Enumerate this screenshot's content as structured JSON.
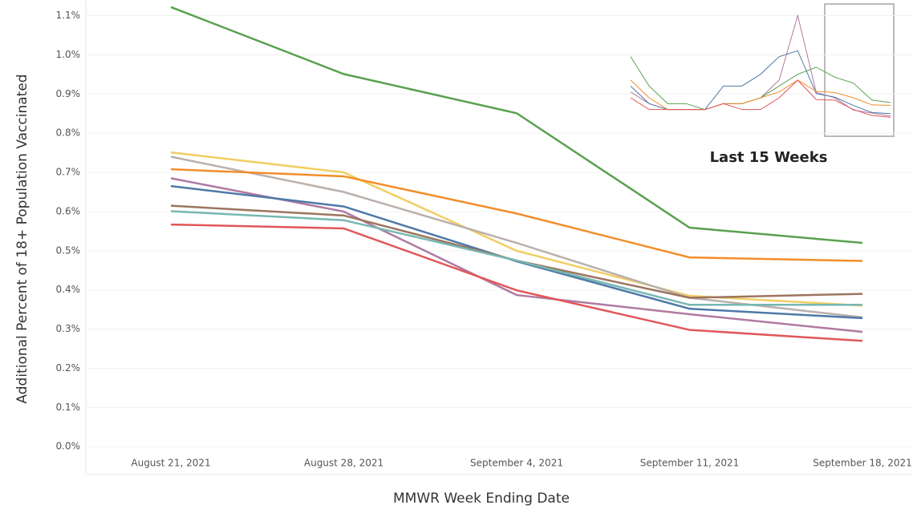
{
  "chart_data": [
    {
      "type": "line",
      "y_label": "Additional Percent of 18+ Population Vaccinated",
      "x_label": "MMWR Week Ending Date",
      "categories": [
        "August 21, 2021",
        "August 28, 2021",
        "September 4, 2021",
        "September 11, 2021",
        "September 18, 2021"
      ],
      "series": [
        {
          "color": "#59a14f",
          "values": [
            1.122,
            0.951,
            0.851,
            0.559,
            0.52
          ]
        },
        {
          "color": "#f1ce63",
          "values": [
            0.751,
            0.7,
            0.5,
            0.385,
            0.36
          ]
        },
        {
          "color": "#bab0ac",
          "values": [
            0.74,
            0.65,
            0.52,
            0.38,
            0.33
          ]
        },
        {
          "color": "#f28e2b",
          "values": [
            0.708,
            0.69,
            0.595,
            0.483,
            0.474
          ]
        },
        {
          "color": "#b07aa1",
          "values": [
            0.685,
            0.6,
            0.387,
            0.338,
            0.293
          ]
        },
        {
          "color": "#4e79a7",
          "values": [
            0.665,
            0.613,
            0.473,
            0.352,
            0.328
          ]
        },
        {
          "color": "#9c755f",
          "values": [
            0.615,
            0.59,
            0.475,
            0.38,
            0.39
          ]
        },
        {
          "color": "#76b7b2",
          "values": [
            0.601,
            0.578,
            0.475,
            0.362,
            0.362
          ]
        },
        {
          "color": "#e15759",
          "values": [
            0.567,
            0.557,
            0.399,
            0.298,
            0.27
          ]
        }
      ],
      "ylim": [
        -0.02,
        1.14
      ],
      "yticks": [
        {
          "value": 0,
          "label": "0.0%"
        },
        {
          "value": 0.1,
          "label": "0.1%"
        },
        {
          "value": 0.2,
          "label": "0.2%"
        },
        {
          "value": 0.3,
          "label": "0.3%"
        },
        {
          "value": 0.4,
          "label": "0.4%"
        },
        {
          "value": 0.5,
          "label": "0.5%"
        },
        {
          "value": 0.6,
          "label": "0.6%"
        },
        {
          "value": 0.7,
          "label": "0.7%"
        },
        {
          "value": 0.8,
          "label": "0.8%"
        },
        {
          "value": 0.9,
          "label": "0.9%"
        },
        {
          "value": 1.0,
          "label": "1.0%"
        },
        {
          "value": 1.1,
          "label": "1.1%"
        }
      ],
      "grid": true
    },
    {
      "type": "line",
      "title": "Last 15 Weeks",
      "series": [
        {
          "color": "#b07aa1",
          "values": [
            0.7,
            0.5,
            0.4,
            0.4,
            0.4,
            0.5,
            0.5,
            0.6,
            0.9,
            2.0,
            0.69,
            0.6,
            0.39,
            0.34,
            0.29
          ]
        },
        {
          "color": "#4e79a7",
          "values": [
            0.8,
            0.5,
            0.4,
            0.4,
            0.4,
            0.8,
            0.8,
            1.0,
            1.3,
            1.4,
            0.67,
            0.61,
            0.47,
            0.35,
            0.33
          ]
        },
        {
          "color": "#59a14f",
          "values": [
            1.3,
            0.8,
            0.5,
            0.5,
            0.4,
            0.5,
            0.5,
            0.6,
            0.8,
            1.0,
            1.12,
            0.95,
            0.85,
            0.56,
            0.52
          ]
        },
        {
          "color": "#f28e2b",
          "values": [
            0.9,
            0.6,
            0.4,
            0.4,
            0.4,
            0.5,
            0.5,
            0.6,
            0.7,
            0.9,
            0.71,
            0.69,
            0.6,
            0.48,
            0.47
          ]
        },
        {
          "color": "#e15759",
          "values": [
            0.6,
            0.4,
            0.4,
            0.4,
            0.4,
            0.5,
            0.4,
            0.4,
            0.6,
            0.9,
            0.57,
            0.56,
            0.4,
            0.3,
            0.27
          ]
        }
      ],
      "ylim": [
        0,
        2.1
      ]
    }
  ]
}
